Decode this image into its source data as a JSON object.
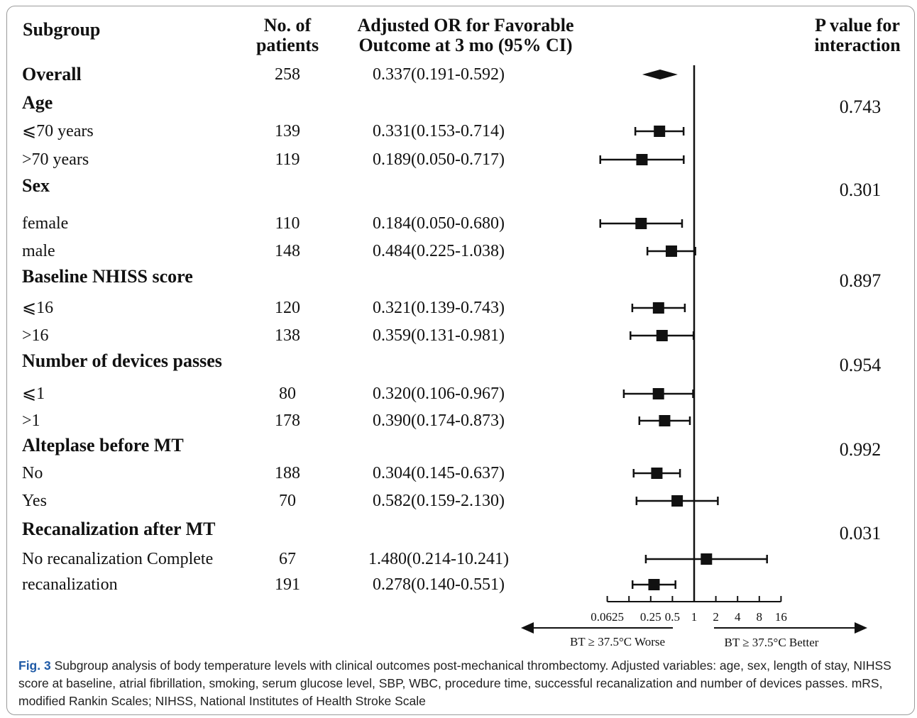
{
  "headers": {
    "subgroup": "Subgroup",
    "n_line1": "No. of",
    "n_line2": "patients",
    "or_line1": "Adjusted OR for Favorable",
    "or_line2": "Outcome at 3 mo (95% CI)",
    "p_line1": "P value for",
    "p_line2": "interaction"
  },
  "chart_data": {
    "type": "forest",
    "xscale": "log2",
    "xlim": [
      0.0625,
      16
    ],
    "reference_line": 1,
    "tick_labels": [
      "0.0625",
      "0.25",
      "0.5",
      "1",
      "2",
      "4",
      "8",
      "16"
    ],
    "tick_values": [
      0.0625,
      0.25,
      0.5,
      1,
      2,
      4,
      8,
      16
    ],
    "minor_ticks": [
      0.125
    ],
    "left_arrow_label": "BT ≥ 37.5°C Worse",
    "right_arrow_label": "BT ≥ 37.5°C Better",
    "rows": [
      {
        "label": "Overall",
        "bold": true,
        "n": "258",
        "text": "0.337(0.191-0.592)",
        "or": 0.337,
        "lo": 0.191,
        "hi": 0.592,
        "marker": "diamond"
      },
      {
        "label": "Age",
        "bold": true,
        "pval": "0.743"
      },
      {
        "label": "⩽70 years",
        "n": "139",
        "text": "0.331(0.153-0.714)",
        "or": 0.331,
        "lo": 0.153,
        "hi": 0.714
      },
      {
        "label": ">70 years",
        "n": "119",
        "text": "0.189(0.050-0.717)",
        "or": 0.189,
        "lo": 0.05,
        "hi": 0.717
      },
      {
        "label": "Sex",
        "bold": true,
        "pval": "0.301"
      },
      {
        "label": "female",
        "n": "110",
        "text": "0.184(0.050-0.680)",
        "or": 0.184,
        "lo": 0.05,
        "hi": 0.68
      },
      {
        "label": "male",
        "n": "148",
        "text": "0.484(0.225-1.038)",
        "or": 0.484,
        "lo": 0.225,
        "hi": 1.038
      },
      {
        "label": "Baseline NHISS score",
        "bold": true,
        "pval": "0.897"
      },
      {
        "label": "⩽16",
        "n": "120",
        "text": "0.321(0.139-0.743)",
        "or": 0.321,
        "lo": 0.139,
        "hi": 0.743
      },
      {
        "label": ">16",
        "n": "138",
        "text": "0.359(0.131-0.981)",
        "or": 0.359,
        "lo": 0.131,
        "hi": 0.981
      },
      {
        "label": "Number of devices passes",
        "bold": true,
        "pval": "0.954"
      },
      {
        "label": "⩽1",
        "n": "80",
        "text": "0.320(0.106-0.967)",
        "or": 0.32,
        "lo": 0.106,
        "hi": 0.967
      },
      {
        "label": ">1",
        "n": "178",
        "text": "0.390(0.174-0.873)",
        "or": 0.39,
        "lo": 0.174,
        "hi": 0.873
      },
      {
        "label": "Alteplase before MT",
        "bold": true,
        "pval": "0.992"
      },
      {
        "label": "No",
        "n": "188",
        "text": "0.304(0.145-0.637)",
        "or": 0.304,
        "lo": 0.145,
        "hi": 0.637
      },
      {
        "label": "Yes",
        "n": "70",
        "text": "0.582(0.159-2.130)",
        "or": 0.582,
        "lo": 0.159,
        "hi": 2.13
      },
      {
        "label": "Recanalization after MT",
        "bold": true,
        "pval": "0.031"
      },
      {
        "label": "No recanalization Complete",
        "n": "67",
        "text": "1.480(0.214-10.241)",
        "or": 1.48,
        "lo": 0.214,
        "hi": 10.241
      },
      {
        "label": "recanalization",
        "n": "191",
        "text": "0.278(0.140-0.551)",
        "or": 0.278,
        "lo": 0.14,
        "hi": 0.551
      }
    ]
  },
  "caption": {
    "label": "Fig. 3",
    "text": " Subgroup analysis of body temperature levels with clinical outcomes post-mechanical thrombectomy. Adjusted variables: age, sex, length of stay, NIHSS score at baseline, atrial fibrillation, smoking, serum glucose level, SBP, WBC, procedure time, successful recanalization and number of devices passes. mRS, modified Rankin Scales; NIHSS, National Institutes of Health Stroke Scale"
  },
  "colors": {
    "ink": "#111111",
    "caption_label": "#1f5aa6",
    "frame": "#9a9a9a"
  }
}
